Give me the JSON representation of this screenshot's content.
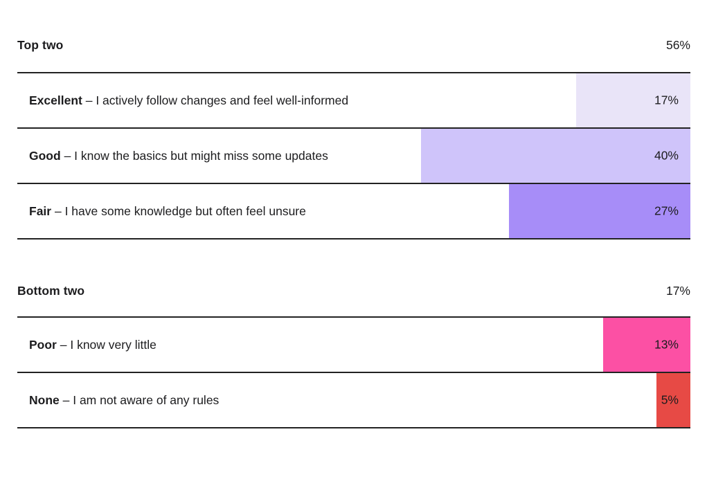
{
  "colors": {
    "excellent_bar": "#e9e4f8",
    "good_bar": "#cfc4fa",
    "fair_bar": "#a78df8",
    "poor_bar": "#fc50a4",
    "none_bar": "#e74a45",
    "divider": "#222222",
    "text": "#1c1c1e"
  },
  "sections": [
    {
      "title": "Top two",
      "total_label": "56%",
      "rows": [
        {
          "term": "Excellent",
          "desc": "– I actively follow changes and feel well-informed",
          "value": 17,
          "pct_label": "17%",
          "bar_color": "#e9e4f8"
        },
        {
          "term": "Good",
          "desc": "– I know the basics but might miss some updates",
          "value": 40,
          "pct_label": "40%",
          "bar_color": "#cfc4fa"
        },
        {
          "term": "Fair",
          "desc": "– I have some knowledge but often feel unsure",
          "value": 27,
          "pct_label": "27%",
          "bar_color": "#a78df8"
        }
      ]
    },
    {
      "title": "Bottom two",
      "total_label": "17%",
      "rows": [
        {
          "term": "Poor",
          "desc": "– I know very little",
          "value": 13,
          "pct_label": "13%",
          "bar_color": "#fc50a4"
        },
        {
          "term": "None",
          "desc": "– I am not aware of any rules",
          "value": 5,
          "pct_label": "5%",
          "bar_color": "#e74a45"
        }
      ]
    }
  ],
  "chart_data": {
    "type": "bar",
    "orientation": "horizontal",
    "bars_right_aligned": true,
    "value_axis_range": [
      0,
      100
    ],
    "grid": false,
    "legend": false,
    "groups": [
      {
        "title": "Top two",
        "group_total_pct": 56,
        "categories": [
          "Excellent – I actively follow changes and feel well-informed",
          "Good – I know the basics but might miss some updates",
          "Fair – I have some knowledge but often feel unsure"
        ],
        "values": [
          17,
          40,
          27
        ],
        "bar_colors": [
          "#e9e4f8",
          "#cfc4fa",
          "#a78df8"
        ]
      },
      {
        "title": "Bottom two",
        "group_total_pct": 17,
        "categories": [
          "Poor – I know very little",
          "None – I am not aware of any rules"
        ],
        "values": [
          13,
          5
        ],
        "bar_colors": [
          "#fc50a4",
          "#e74a45"
        ]
      }
    ]
  }
}
